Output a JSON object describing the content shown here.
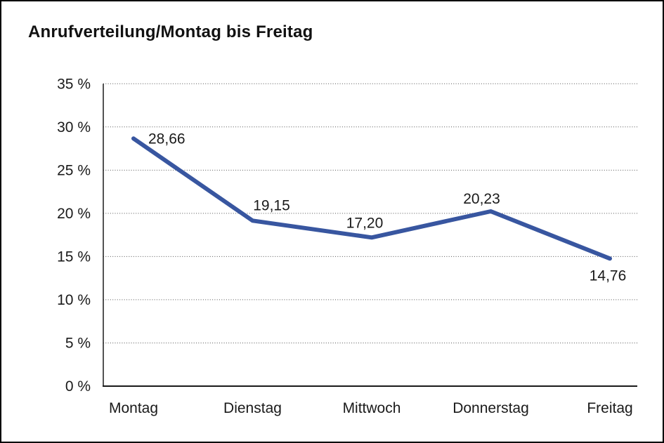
{
  "header": {
    "title": "Anrufverteilung/Montag bis Freitag"
  },
  "chart_data": {
    "type": "line",
    "title": "Anrufverteilung/Montag bis Freitag",
    "categories": [
      "Montag",
      "Dienstag",
      "Mittwoch",
      "Donnerstag",
      "Freitag"
    ],
    "series": [
      {
        "name": "Anrufverteilung",
        "values": [
          28.66,
          19.15,
          17.2,
          20.23,
          14.76
        ],
        "color": "#3856A0"
      }
    ],
    "point_labels": [
      "28,66",
      "19,15",
      "17,20",
      "20,23",
      "14,76"
    ],
    "xlabel": "",
    "ylabel": "",
    "ylim": [
      0,
      35
    ],
    "y_tick_step": 5,
    "y_tick_labels": [
      "0 %",
      "5 %",
      "10 %",
      "15 %",
      "20 %",
      "25 %",
      "30 %",
      "35 %"
    ],
    "grid": "horizontal-dotted",
    "legend_position": "none",
    "colors": {
      "line": "#3856A0",
      "grid": "#555555",
      "axis": "#1a1a1a",
      "text": "#1a1a1a",
      "background": "#ffffff",
      "frame_border": "#000000"
    }
  }
}
